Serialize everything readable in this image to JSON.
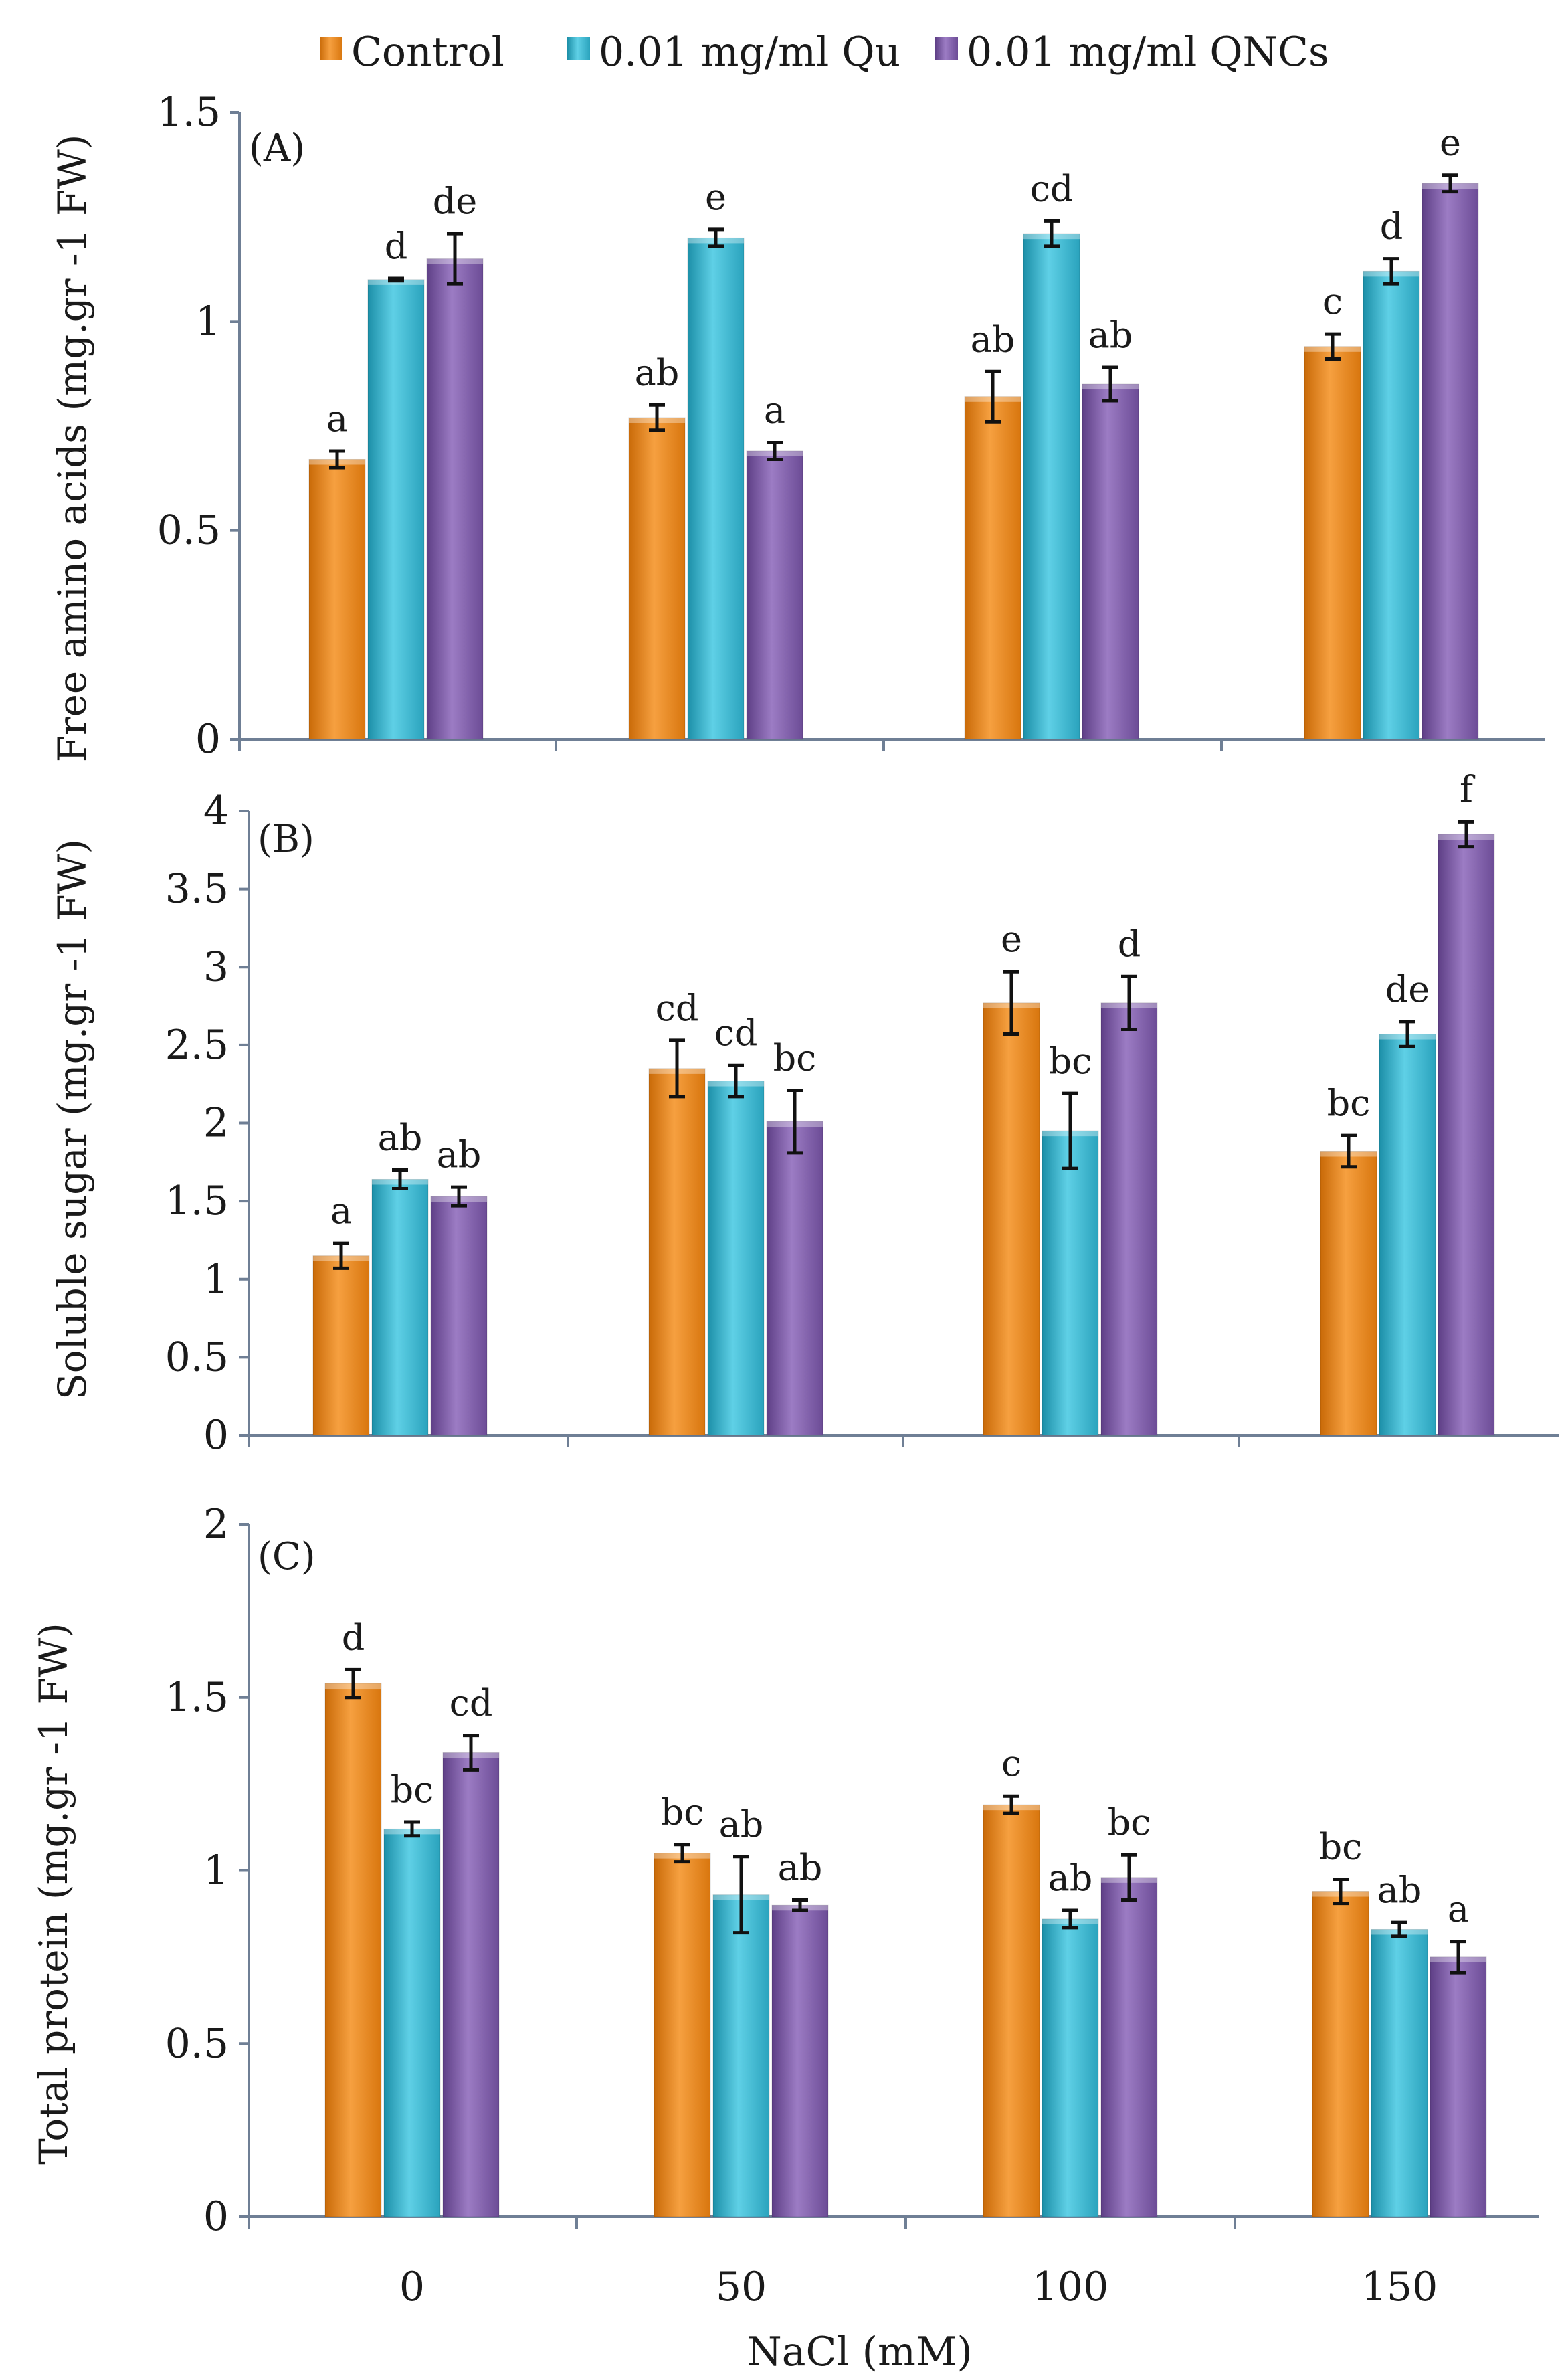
{
  "colors": {
    "control": "#f28e1c",
    "qu": "#2fb7d1",
    "qncs": "#7e5aa8"
  },
  "legend": [
    "Control",
    "0.01 mg/ml Qu",
    "0.01 mg/ml QNCs"
  ],
  "chart_data": [
    {
      "type": "bar",
      "panel": "(A)",
      "ylabel": "Free amino acids (mg.gr -1 FW)",
      "ylim": [
        0,
        1.5
      ],
      "yticks": [
        "0",
        "0.5",
        "1",
        "1.5"
      ],
      "categories": [
        "0",
        "50",
        "100",
        "150"
      ],
      "series": [
        {
          "name": "Control",
          "values": [
            0.67,
            0.77,
            0.82,
            0.94
          ],
          "errors": [
            0.02,
            0.03,
            0.06,
            0.03
          ],
          "letters": [
            "a",
            "ab",
            "ab",
            "c"
          ]
        },
        {
          "name": "0.01 mg/ml Qu",
          "values": [
            1.1,
            1.2,
            1.21,
            1.12
          ],
          "errors": [
            0.003,
            0.02,
            0.03,
            0.03
          ],
          "letters": [
            "d",
            "e",
            "cd",
            "d"
          ]
        },
        {
          "name": "0.01 mg/ml QNCs",
          "values": [
            1.15,
            0.69,
            0.85,
            1.33
          ],
          "errors": [
            0.06,
            0.02,
            0.04,
            0.02
          ],
          "letters": [
            "de",
            "a",
            "ab",
            "e"
          ]
        }
      ]
    },
    {
      "type": "bar",
      "panel": "(B)",
      "ylabel": "Soluble sugar (mg.gr -1 FW)",
      "ylim": [
        0,
        4
      ],
      "yticks": [
        "0",
        "0.5",
        "1",
        "1.5",
        "2",
        "2.5",
        "3",
        "3.5",
        "4"
      ],
      "categories": [
        "0",
        "50",
        "100",
        "150"
      ],
      "series": [
        {
          "name": "Control",
          "values": [
            1.15,
            2.35,
            2.77,
            1.82
          ],
          "errors": [
            0.08,
            0.18,
            0.2,
            0.1
          ],
          "letters": [
            "a",
            "cd",
            "e",
            "bc"
          ]
        },
        {
          "name": "0.01 mg/ml Qu",
          "values": [
            1.64,
            2.27,
            1.95,
            2.57
          ],
          "errors": [
            0.06,
            0.1,
            0.24,
            0.08
          ],
          "letters": [
            "ab",
            "cd",
            "bc",
            "de"
          ]
        },
        {
          "name": "0.01 mg/ml QNCs",
          "values": [
            1.53,
            2.01,
            2.77,
            3.85
          ],
          "errors": [
            0.06,
            0.2,
            0.17,
            0.08
          ],
          "letters": [
            "ab",
            "bc",
            "d",
            "f"
          ]
        }
      ]
    },
    {
      "type": "bar",
      "panel": "(C)",
      "ylabel": "Total protein (mg.gr -1 FW)",
      "ylim": [
        0,
        2
      ],
      "yticks": [
        "0",
        "0.5",
        "1",
        "1.5",
        "2"
      ],
      "categories": [
        "0",
        "50",
        "100",
        "150"
      ],
      "xlabel": "NaCl (mM)",
      "series": [
        {
          "name": "Control",
          "values": [
            1.54,
            1.05,
            1.19,
            0.94
          ],
          "errors": [
            0.04,
            0.025,
            0.025,
            0.035
          ],
          "letters": [
            "d",
            "bc",
            "c",
            "bc"
          ]
        },
        {
          "name": "0.01 mg/ml Qu",
          "values": [
            1.12,
            0.93,
            0.86,
            0.83
          ],
          "errors": [
            0.02,
            0.11,
            0.025,
            0.02
          ],
          "letters": [
            "bc",
            "ab",
            "ab",
            "ab"
          ]
        },
        {
          "name": "0.01 mg/ml QNCs",
          "values": [
            1.34,
            0.9,
            0.98,
            0.75
          ],
          "errors": [
            0.05,
            0.015,
            0.065,
            0.045
          ],
          "letters": [
            "cd",
            "ab",
            "bc",
            "a"
          ]
        }
      ]
    }
  ]
}
